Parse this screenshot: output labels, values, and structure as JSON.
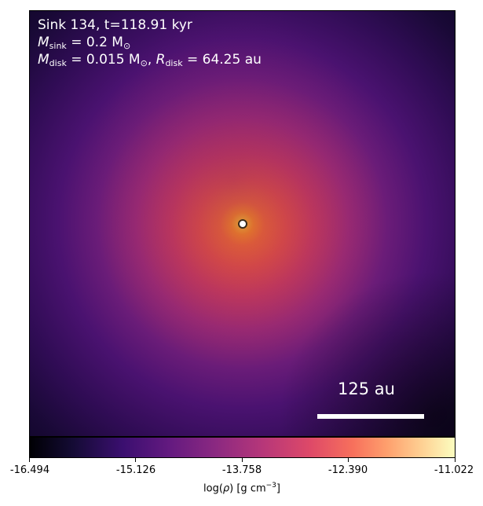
{
  "header": {
    "sink_line": "Sink 134, t=118.91 kyr",
    "msink_symbol": "M",
    "msink_sub": "sink",
    "msink_value": " = 0.2 M",
    "msink_unit_sub": "⊙",
    "mdisk_symbol": "M",
    "mdisk_sub": "disk",
    "mdisk_value": " = 0.015 M",
    "mdisk_unit_sub": "⊙",
    "rdisk_sep": ", ",
    "rdisk_symbol": "R",
    "rdisk_sub": "disk",
    "rdisk_value": " = 64.25 au"
  },
  "scalebar": {
    "label": "125 au"
  },
  "colorbar": {
    "colormap": "inferno",
    "ticks": [
      "-16.494",
      "-15.126",
      "-13.758",
      "-12.390",
      "-11.022"
    ],
    "title_prefix": "log(",
    "title_symbol": "ρ",
    "title_mid": ") [g cm",
    "title_sup": "−3",
    "title_suffix": "]"
  },
  "colors": {
    "marker_fill": "#ffffff",
    "marker_edge": "#3a2a1a",
    "text": "#ffffff"
  }
}
